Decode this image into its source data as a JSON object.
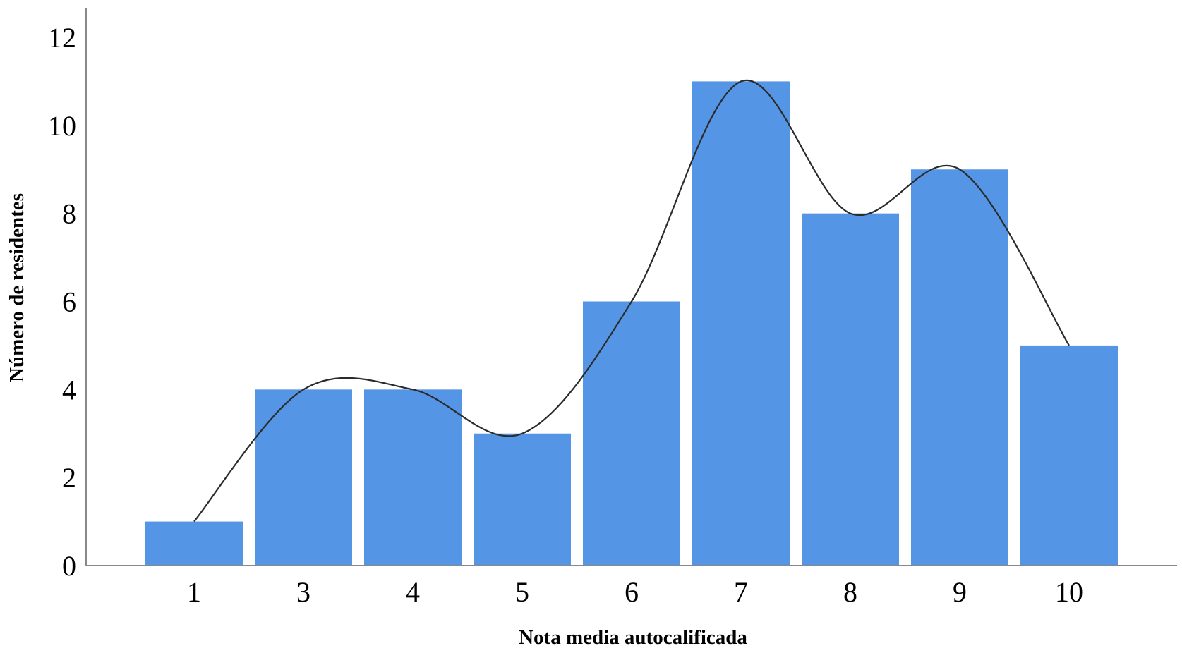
{
  "chart_data": {
    "type": "bar",
    "title": "",
    "xlabel": "Nota media autocalificada",
    "ylabel": "Número de residentes",
    "categories": [
      "1",
      "3",
      "4",
      "5",
      "6",
      "7",
      "8",
      "9",
      "10"
    ],
    "values": [
      1,
      4,
      4,
      3,
      6,
      11,
      8,
      9,
      5
    ],
    "ylim": [
      0,
      12
    ],
    "yticks": [
      "0",
      "2",
      "4",
      "6",
      "8",
      "10",
      "12"
    ],
    "grid": false,
    "legend": "none",
    "overlay": "smooth curve through bar tops",
    "colors": {
      "bar": "#5595e5",
      "curve": "#2b2b2b",
      "axis": "#888888"
    }
  }
}
